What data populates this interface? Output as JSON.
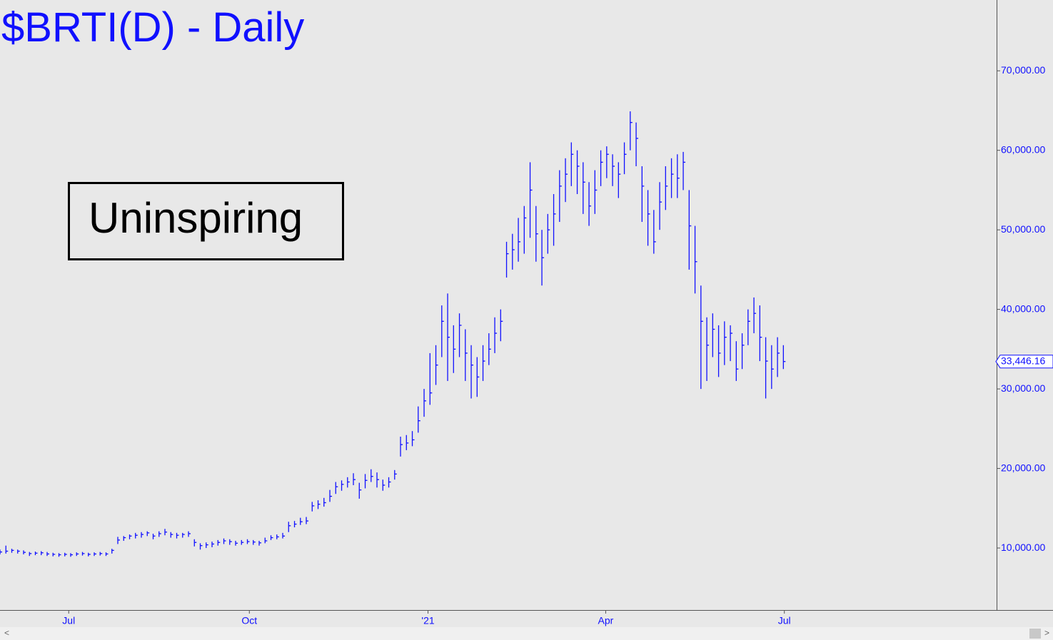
{
  "chart_data": {
    "type": "ohlc",
    "title": "$BRTI(D) - Daily",
    "annotation": "Uninspiring",
    "color": "#1010ff",
    "last_value": {
      "value": 33446.16,
      "label": "33,446.16"
    },
    "xlim": [
      0,
      507.6
    ],
    "xticks": [
      {
        "value": 35,
        "label": "Jul"
      },
      {
        "value": 127,
        "label": "Oct"
      },
      {
        "value": 218,
        "label": "'21"
      },
      {
        "value": 308.5,
        "label": "Apr"
      },
      {
        "value": 399.5,
        "label": "Jul"
      }
    ],
    "ylim": [
      2200,
      78900
    ],
    "yticks": [
      {
        "value": 10000,
        "label": "10,000.00"
      },
      {
        "value": 20000,
        "label": "20,000.00"
      },
      {
        "value": 30000,
        "label": "30,000.00"
      },
      {
        "value": 40000,
        "label": "40,000.00"
      },
      {
        "value": 50000,
        "label": "50,000.00"
      },
      {
        "value": 60000,
        "label": "60,000.00"
      },
      {
        "value": 70000,
        "label": "70,000.00"
      }
    ],
    "grid": false,
    "x": [
      0,
      3,
      6,
      9,
      12,
      15,
      18,
      21,
      24,
      27,
      30,
      33,
      36,
      39,
      42,
      45,
      48,
      51,
      54,
      57,
      60,
      63,
      66,
      69,
      72,
      75,
      78,
      81,
      84,
      87,
      90,
      93,
      96,
      99,
      102,
      105,
      108,
      111,
      114,
      117,
      120,
      123,
      126,
      129,
      132,
      135,
      138,
      141,
      144,
      147,
      150,
      153,
      156,
      159,
      162,
      165,
      168,
      171,
      174,
      177,
      180,
      183,
      186,
      189,
      192,
      195,
      198,
      201,
      204,
      207,
      210,
      213,
      216,
      219,
      222,
      225,
      228,
      231,
      234,
      237,
      240,
      243,
      246,
      249,
      252,
      255,
      258,
      261,
      264,
      267,
      270,
      273,
      276,
      279,
      282,
      285,
      288,
      291,
      294,
      297,
      300,
      303,
      306,
      309,
      312,
      315,
      318,
      321,
      324,
      327,
      330,
      333,
      336,
      339,
      342,
      345,
      348,
      351,
      354,
      357,
      360,
      363,
      366,
      369,
      372,
      375,
      378,
      381,
      384,
      387,
      390,
      393,
      396,
      399
    ],
    "high": [
      9800,
      10300,
      9900,
      9800,
      9700,
      9500,
      9550,
      9600,
      9500,
      9400,
      9350,
      9400,
      9350,
      9450,
      9500,
      9400,
      9450,
      9500,
      9450,
      9900,
      11400,
      11500,
      11700,
      11900,
      12000,
      12100,
      11800,
      12100,
      12400,
      12000,
      11900,
      11900,
      12100,
      11100,
      10600,
      10700,
      10800,
      11000,
      11200,
      11100,
      10900,
      11000,
      11100,
      11000,
      10900,
      11300,
      11600,
      11700,
      11900,
      13300,
      13400,
      13800,
      13900,
      15800,
      16000,
      16300,
      17300,
      18300,
      18500,
      18900,
      19400,
      18200,
      19300,
      19900,
      19500,
      18600,
      18900,
      19800,
      24000,
      24200,
      24700,
      27800,
      30000,
      34500,
      35500,
      40500,
      42000,
      38000,
      39500,
      37500,
      35500,
      34000,
      35500,
      37000,
      39000,
      40000,
      48500,
      49500,
      51500,
      53000,
      58500,
      53000,
      50000,
      52000,
      54500,
      57500,
      59000,
      61000,
      60000,
      58500,
      56000,
      57500,
      60000,
      60500,
      59500,
      58500,
      61000,
      64900,
      63500,
      58000,
      55000,
      52500,
      56000,
      58000,
      59000,
      59500,
      59800,
      55000,
      50500,
      43000,
      39000,
      39500,
      38000,
      38500,
      38000,
      36000,
      37000,
      40000,
      41500,
      40500,
      36500,
      35500,
      36500,
      35500
    ],
    "low": [
      9200,
      9300,
      9400,
      9300,
      9200,
      9000,
      9100,
      9100,
      9000,
      8950,
      8900,
      8950,
      8900,
      9000,
      9050,
      8950,
      9000,
      9050,
      9000,
      9300,
      10500,
      10900,
      11100,
      11200,
      11300,
      11500,
      11100,
      11400,
      11600,
      11300,
      11200,
      11300,
      11400,
      10200,
      9800,
      10000,
      10100,
      10300,
      10500,
      10400,
      10300,
      10400,
      10500,
      10400,
      10300,
      10600,
      11000,
      11100,
      11200,
      12000,
      12600,
      12900,
      13000,
      14600,
      14900,
      15200,
      15800,
      16800,
      17200,
      17600,
      17900,
      16200,
      17500,
      18300,
      17600,
      17200,
      17600,
      18600,
      21500,
      22300,
      22800,
      24500,
      26500,
      28000,
      30500,
      34000,
      31000,
      32000,
      34000,
      31000,
      28800,
      29000,
      31000,
      33000,
      34500,
      36000,
      44000,
      45000,
      46000,
      47000,
      49000,
      46000,
      43000,
      47000,
      48000,
      51000,
      53500,
      55500,
      54500,
      52000,
      50500,
      52000,
      55500,
      56500,
      55500,
      54000,
      57000,
      60000,
      58000,
      51000,
      48000,
      47000,
      50000,
      52500,
      54000,
      54000,
      55000,
      45000,
      42000,
      30000,
      31000,
      34000,
      31500,
      33000,
      33500,
      31000,
      32500,
      35500,
      37000,
      33500,
      28800,
      30000,
      31500,
      32500
    ],
    "close": [
      9500,
      9600,
      9700,
      9600,
      9450,
      9300,
      9350,
      9400,
      9250,
      9200,
      9150,
      9200,
      9150,
      9250,
      9300,
      9200,
      9250,
      9300,
      9250,
      9700,
      11000,
      11300,
      11500,
      11600,
      11700,
      11900,
      11500,
      11800,
      12000,
      11700,
      11600,
      11700,
      11800,
      10700,
      10300,
      10400,
      10500,
      10700,
      10900,
      10800,
      10600,
      10700,
      10800,
      10750,
      10650,
      10900,
      11300,
      11400,
      11500,
      12800,
      13000,
      13300,
      13400,
      15300,
      15500,
      15700,
      16500,
      17700,
      18000,
      18300,
      18600,
      17300,
      18500,
      19000,
      18600,
      17900,
      18300,
      19300,
      23000,
      23200,
      23600,
      26000,
      28500,
      29500,
      33000,
      38500,
      36500,
      35000,
      38000,
      34500,
      33000,
      31500,
      33500,
      35000,
      37000,
      38500,
      47000,
      47500,
      48500,
      51500,
      55000,
      49500,
      46500,
      50000,
      52000,
      55500,
      57000,
      59500,
      58000,
      56000,
      53000,
      55000,
      58500,
      59500,
      58000,
      57000,
      59500,
      63500,
      61500,
      55500,
      52000,
      48500,
      53500,
      55500,
      57000,
      56500,
      58500,
      50500,
      46000,
      38500,
      35500,
      37500,
      34500,
      36500,
      37000,
      32500,
      35500,
      38500,
      39500,
      36500,
      33500,
      32500,
      34500,
      33446.16
    ]
  }
}
